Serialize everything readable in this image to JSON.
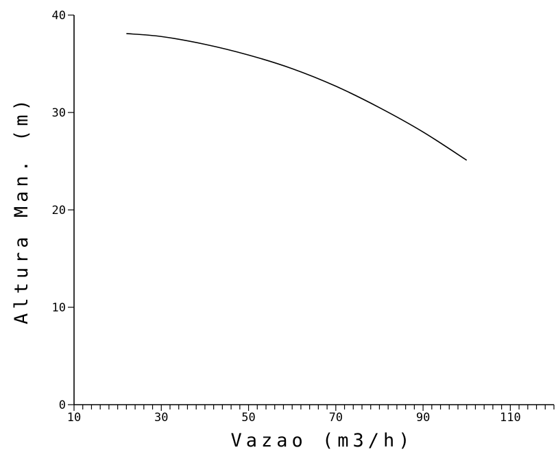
{
  "chart_data": {
    "type": "line",
    "title": "",
    "xlabel": "Vazao (m3/h)",
    "ylabel": "Altura Man. (m)",
    "xlim": [
      10,
      120
    ],
    "ylim": [
      0,
      40
    ],
    "x_ticks": [
      10,
      30,
      50,
      70,
      90,
      110
    ],
    "x_tick_labels": [
      "10",
      "30",
      "50",
      "70",
      "90",
      "110"
    ],
    "y_ticks": [
      0,
      10,
      20,
      30,
      40
    ],
    "y_tick_labels": [
      "0",
      "10",
      "20",
      "30",
      "40"
    ],
    "x_minor_step": 2,
    "grid": false,
    "line_color": "#000000",
    "series": [
      {
        "x": [
          22,
          30,
          40,
          50,
          60,
          70,
          80,
          90,
          100
        ],
        "values": [
          38.1,
          37.8,
          37.0,
          35.9,
          34.5,
          32.7,
          30.5,
          28.0,
          25.1
        ]
      }
    ]
  }
}
